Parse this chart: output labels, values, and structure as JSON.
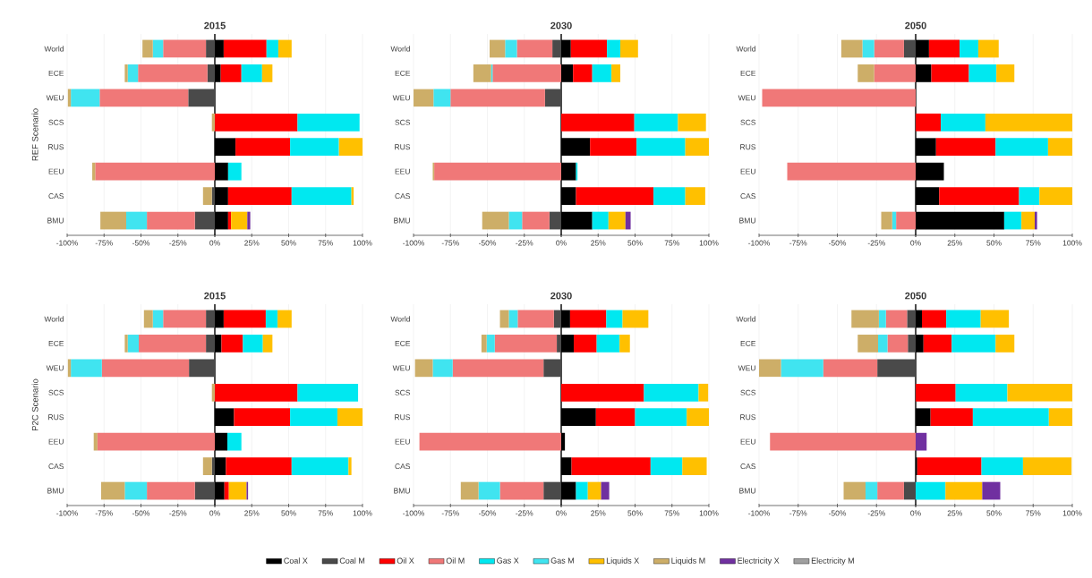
{
  "chart_data": [
    {
      "type": "bar",
      "orientation": "horizontal",
      "stacked": true,
      "title": "2015",
      "ylabel": "REF Scenario",
      "categories": [
        "World",
        "ECE",
        "WEU",
        "SCS",
        "RUS",
        "EEU",
        "CAS",
        "BMU"
      ],
      "xlim": [
        -100,
        100
      ],
      "xticks": [
        {
          "value": -100,
          "label": "-100%"
        },
        {
          "value": -75,
          "label": "-75%"
        },
        {
          "value": -50,
          "label": "-50%"
        },
        {
          "value": -25,
          "label": "-25%"
        },
        {
          "value": 0,
          "label": "0%"
        },
        {
          "value": 25,
          "label": "25%"
        },
        {
          "value": 50,
          "label": "50%"
        },
        {
          "value": 75,
          "label": "75%"
        },
        {
          "value": 100,
          "label": "100%"
        }
      ],
      "grid": "x",
      "series": [
        {
          "color": "#000000",
          "values": [
            6,
            4,
            null,
            null,
            14,
            9,
            9,
            9
          ]
        },
        {
          "color": "#4a4a4a",
          "values": [
            -6,
            -5,
            -18,
            null,
            null,
            null,
            -2,
            -13.5
          ]
        },
        {
          "color": "#ff0000",
          "values": [
            29,
            14,
            null,
            56,
            37,
            null,
            43,
            2
          ]
        },
        {
          "color": "#f07878",
          "values": [
            -29,
            -47,
            -60,
            null,
            null,
            -81,
            null,
            -32.5
          ]
        },
        {
          "color": "#00e8f0",
          "values": [
            8,
            14,
            null,
            42,
            33,
            9,
            40.5,
            null
          ]
        },
        {
          "color": "#40e4f0",
          "values": [
            -7,
            -7,
            -19.5,
            null,
            null,
            null,
            null,
            -14
          ]
        },
        {
          "color": "#ffc000",
          "values": [
            9,
            7,
            null,
            null,
            16,
            null,
            1.5,
            11
          ]
        },
        {
          "color": "#cdae68",
          "values": [
            -7,
            -2,
            -2,
            -2,
            null,
            -2,
            -6,
            -17.5
          ]
        },
        {
          "color": "#7030a0",
          "values": [
            null,
            null,
            null,
            null,
            null,
            null,
            null,
            2
          ]
        }
      ]
    },
    {
      "type": "bar",
      "orientation": "horizontal",
      "stacked": true,
      "title": "2030",
      "categories": [
        "World",
        "ECE",
        "WEU",
        "SCS",
        "RUS",
        "EEU",
        "CAS",
        "BMU"
      ],
      "xlim": [
        -100,
        100
      ],
      "xticks": [
        {
          "value": -100,
          "label": "-100%"
        },
        {
          "value": -75,
          "label": "-75%"
        },
        {
          "value": -50,
          "label": "-50%"
        },
        {
          "value": -25,
          "label": "-25%"
        },
        {
          "value": 0,
          "label": "0%"
        },
        {
          "value": 25,
          "label": "25%"
        },
        {
          "value": 50,
          "label": "50%"
        },
        {
          "value": 75,
          "label": "75%"
        },
        {
          "value": 100,
          "label": "100%"
        }
      ],
      "grid": "x",
      "series": [
        {
          "color": "#000000",
          "values": [
            6.5,
            8,
            null,
            null,
            19.5,
            10,
            10,
            21
          ]
        },
        {
          "color": "#4a4a4a",
          "values": [
            -6,
            null,
            -11,
            null,
            null,
            null,
            null,
            -8
          ]
        },
        {
          "color": "#ff0000",
          "values": [
            24.5,
            13,
            null,
            49.5,
            31.5,
            null,
            52.5,
            null
          ]
        },
        {
          "color": "#f07878",
          "values": [
            -24,
            -46.5,
            -64,
            null,
            null,
            -86,
            null,
            -18.5
          ]
        },
        {
          "color": "#00e8f0",
          "values": [
            9,
            13,
            null,
            29.5,
            33,
            1,
            21.5,
            11
          ]
        },
        {
          "color": "#40e4f0",
          "values": [
            -8,
            -1,
            -11.5,
            null,
            null,
            null,
            null,
            -9
          ]
        },
        {
          "color": "#ffc000",
          "values": [
            12,
            6,
            null,
            19,
            16,
            null,
            13.5,
            11.5
          ]
        },
        {
          "color": "#cdae68",
          "values": [
            -10.5,
            -12,
            -13.5,
            null,
            null,
            -1,
            null,
            -18
          ]
        },
        {
          "color": "#7030a0",
          "values": [
            null,
            null,
            null,
            null,
            null,
            null,
            null,
            3.5
          ]
        }
      ]
    },
    {
      "type": "bar",
      "orientation": "horizontal",
      "stacked": true,
      "title": "2050",
      "categories": [
        "World",
        "ECE",
        "WEU",
        "SCS",
        "RUS",
        "EEU",
        "CAS",
        "BMU"
      ],
      "xlim": [
        -100,
        100
      ],
      "xticks": [
        {
          "value": -100,
          "label": "-100%"
        },
        {
          "value": -75,
          "label": "-75%"
        },
        {
          "value": -50,
          "label": "-50%"
        },
        {
          "value": -25,
          "label": "-25%"
        },
        {
          "value": 0,
          "label": "0%"
        },
        {
          "value": 25,
          "label": "25%"
        },
        {
          "value": 50,
          "label": "50%"
        },
        {
          "value": 75,
          "label": "75%"
        },
        {
          "value": 100,
          "label": "100%"
        }
      ],
      "grid": "x",
      "series": [
        {
          "color": "#000000",
          "values": [
            8.5,
            10,
            null,
            null,
            13,
            18,
            15,
            56.5
          ]
        },
        {
          "color": "#4a4a4a",
          "values": [
            -7.5,
            null,
            null,
            null,
            null,
            null,
            null,
            null
          ]
        },
        {
          "color": "#ff0000",
          "values": [
            19.5,
            24,
            null,
            16,
            38,
            null,
            51,
            null
          ]
        },
        {
          "color": "#f07878",
          "values": [
            -19,
            -26.5,
            -98,
            null,
            null,
            -82,
            null,
            -12.5
          ]
        },
        {
          "color": "#00e8f0",
          "values": [
            12,
            17.5,
            null,
            28.5,
            33.5,
            null,
            13,
            11
          ]
        },
        {
          "color": "#40e4f0",
          "values": [
            -7.5,
            null,
            null,
            null,
            null,
            null,
            null,
            -2.5
          ]
        },
        {
          "color": "#ffc000",
          "values": [
            13,
            11.5,
            null,
            55.5,
            15.5,
            null,
            21,
            8.5
          ]
        },
        {
          "color": "#cdae68",
          "values": [
            -13.5,
            -10.5,
            null,
            null,
            null,
            null,
            null,
            -7
          ]
        },
        {
          "color": "#7030a0",
          "values": [
            null,
            null,
            null,
            null,
            null,
            null,
            null,
            1.5
          ]
        }
      ]
    },
    {
      "type": "bar",
      "orientation": "horizontal",
      "stacked": true,
      "title": "2015",
      "ylabel": "P2C Scenario",
      "categories": [
        "World",
        "ECE",
        "WEU",
        "SCS",
        "RUS",
        "EEU",
        "CAS",
        "BMU"
      ],
      "xlim": [
        -100,
        100
      ],
      "xticks": [
        {
          "value": -100,
          "label": "-100%"
        },
        {
          "value": -75,
          "label": "-75%"
        },
        {
          "value": -50,
          "label": "-50%"
        },
        {
          "value": -25,
          "label": "-25%"
        },
        {
          "value": 0,
          "label": "0%"
        },
        {
          "value": 25,
          "label": "25%"
        },
        {
          "value": 50,
          "label": "50%"
        },
        {
          "value": 75,
          "label": "75%"
        },
        {
          "value": 100,
          "label": "100%"
        }
      ],
      "grid": "x",
      "series": [
        {
          "color": "#000000",
          "values": [
            6,
            4.5,
            null,
            null,
            13,
            8.5,
            7.5,
            6.5
          ]
        },
        {
          "color": "#4a4a4a",
          "values": [
            -6,
            -6,
            -17.5,
            null,
            null,
            null,
            -2,
            -13.5
          ]
        },
        {
          "color": "#ff0000",
          "values": [
            28.5,
            14.5,
            null,
            56,
            38,
            null,
            44.5,
            3
          ]
        },
        {
          "color": "#f07878",
          "values": [
            -29,
            -45.5,
            -59,
            null,
            null,
            -79.5,
            null,
            -32.5
          ]
        },
        {
          "color": "#00e8f0",
          "values": [
            8,
            13.5,
            null,
            41,
            32,
            9.5,
            38.5,
            null
          ]
        },
        {
          "color": "#40e4f0",
          "values": [
            -7,
            -7.5,
            -21,
            null,
            null,
            null,
            null,
            -15
          ]
        },
        {
          "color": "#ffc000",
          "values": [
            9.5,
            6.5,
            null,
            null,
            17,
            null,
            2,
            12
          ]
        },
        {
          "color": "#cdae68",
          "values": [
            -6,
            -2,
            -2,
            -2,
            null,
            -2.5,
            -6,
            -16
          ]
        },
        {
          "color": "#7030a0",
          "values": [
            null,
            null,
            null,
            null,
            null,
            null,
            null,
            1
          ]
        }
      ]
    },
    {
      "type": "bar",
      "orientation": "horizontal",
      "stacked": true,
      "title": "2030",
      "categories": [
        "World",
        "ECE",
        "WEU",
        "SCS",
        "RUS",
        "EEU",
        "CAS",
        "BMU"
      ],
      "xlim": [
        -100,
        100
      ],
      "xticks": [
        {
          "value": -100,
          "label": "-100%"
        },
        {
          "value": -75,
          "label": "-75%"
        },
        {
          "value": -50,
          "label": "-50%"
        },
        {
          "value": -25,
          "label": "-25%"
        },
        {
          "value": 0,
          "label": "0%"
        },
        {
          "value": 25,
          "label": "25%"
        },
        {
          "value": 50,
          "label": "50%"
        },
        {
          "value": 75,
          "label": "75%"
        },
        {
          "value": 100,
          "label": "100%"
        }
      ],
      "grid": "x",
      "legend": "bottom",
      "series": [
        {
          "name": "Coal X",
          "color": "#000000",
          "values": [
            6,
            8.5,
            null,
            null,
            23.5,
            2.5,
            7,
            10
          ]
        },
        {
          "name": "Coal M",
          "color": "#4a4a4a",
          "values": [
            -5,
            -3,
            -12,
            null,
            null,
            null,
            null,
            -12
          ]
        },
        {
          "name": "Oil X",
          "color": "#ff0000",
          "values": [
            24.5,
            15.5,
            null,
            56,
            26.5,
            null,
            53.5,
            null
          ]
        },
        {
          "name": "Oil M",
          "color": "#f07878",
          "values": [
            -24.5,
            -42,
            -61.5,
            null,
            null,
            -96,
            null,
            -29.5
          ]
        },
        {
          "name": "Gas X",
          "color": "#00e8f0",
          "values": [
            11,
            15.5,
            null,
            37,
            35,
            null,
            21.5,
            8
          ]
        },
        {
          "name": "Gas M",
          "color": "#40e4f0",
          "values": [
            -6,
            -5.5,
            -13.5,
            null,
            null,
            null,
            null,
            -14.5
          ]
        },
        {
          "name": "Liquids X",
          "color": "#ffc000",
          "values": [
            17.5,
            7,
            null,
            6.5,
            15,
            null,
            16.5,
            9
          ]
        },
        {
          "name": "Liquids M",
          "color": "#cdae68",
          "values": [
            -6,
            -3.5,
            -12,
            null,
            null,
            null,
            null,
            -12
          ]
        },
        {
          "name": "Electricity X",
          "color": "#7030a0",
          "values": [
            null,
            null,
            null,
            null,
            null,
            null,
            null,
            5.5
          ]
        },
        {
          "name": "Electricity M",
          "color": "#a0a0a0",
          "values": [
            null,
            null,
            null,
            null,
            null,
            null,
            null,
            null
          ]
        }
      ]
    },
    {
      "type": "bar",
      "orientation": "horizontal",
      "stacked": true,
      "title": "2050",
      "categories": [
        "World",
        "ECE",
        "WEU",
        "SCS",
        "RUS",
        "EEU",
        "CAS",
        "BMU"
      ],
      "xlim": [
        -100,
        100
      ],
      "xticks": [
        {
          "value": -100,
          "label": "-100%"
        },
        {
          "value": -75,
          "label": "-75%"
        },
        {
          "value": -50,
          "label": "-50%"
        },
        {
          "value": -25,
          "label": "-25%"
        },
        {
          "value": 0,
          "label": "0%"
        },
        {
          "value": 25,
          "label": "25%"
        },
        {
          "value": 50,
          "label": "50%"
        },
        {
          "value": 75,
          "label": "75%"
        },
        {
          "value": 100,
          "label": "100%"
        }
      ],
      "grid": "x",
      "series": [
        {
          "color": "#000000",
          "values": [
            4,
            5,
            null,
            null,
            9.5,
            null,
            1,
            null
          ]
        },
        {
          "color": "#4a4a4a",
          "values": [
            -5.5,
            -5,
            -24.5,
            null,
            null,
            null,
            null,
            -7.5
          ]
        },
        {
          "color": "#ff0000",
          "values": [
            15.5,
            18,
            null,
            25.5,
            27,
            null,
            41,
            null
          ]
        },
        {
          "color": "#f07878",
          "values": [
            -13.5,
            -13,
            -34.5,
            null,
            null,
            -93,
            null,
            -17
          ]
        },
        {
          "color": "#00e8f0",
          "values": [
            22,
            28,
            null,
            33,
            48.5,
            null,
            26.5,
            19
          ]
        },
        {
          "color": "#40e4f0",
          "values": [
            -4.5,
            -6,
            -27,
            null,
            null,
            null,
            null,
            -7.5
          ]
        },
        {
          "color": "#ffc000",
          "values": [
            18,
            12,
            null,
            41.5,
            15,
            null,
            31,
            23.5
          ]
        },
        {
          "color": "#cdae68",
          "values": [
            -17.5,
            -13,
            -14,
            null,
            null,
            null,
            null,
            -14
          ]
        },
        {
          "color": "#7030a0",
          "values": [
            null,
            null,
            null,
            null,
            null,
            7,
            null,
            11.5
          ]
        }
      ]
    }
  ]
}
